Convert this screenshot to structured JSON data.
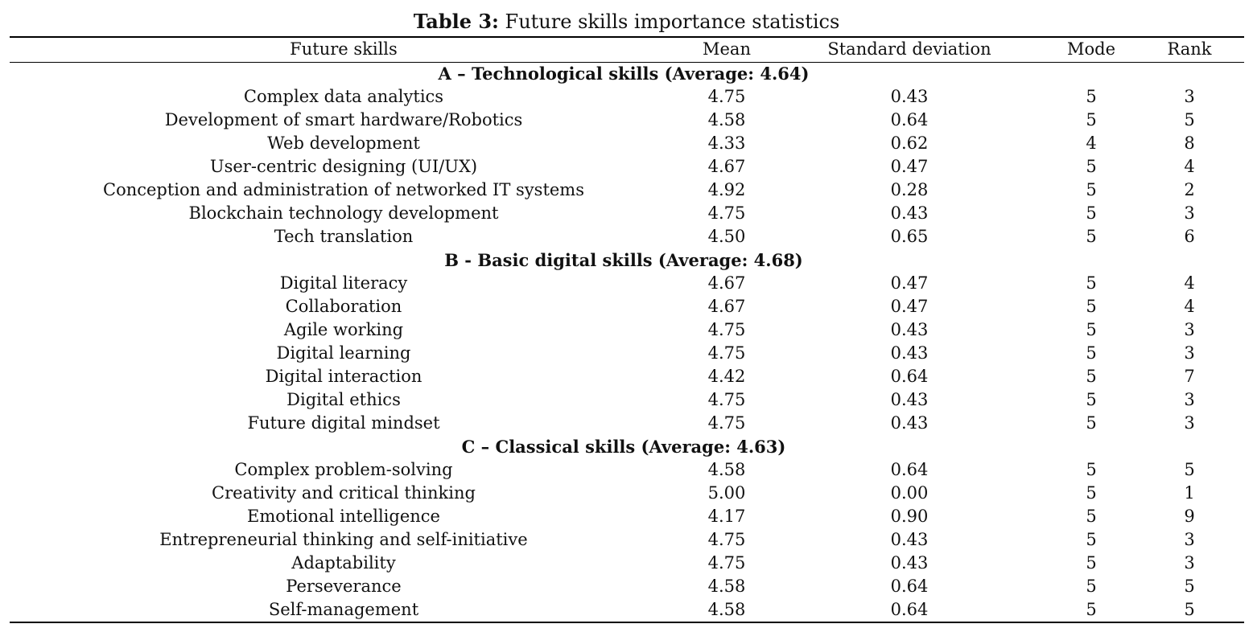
{
  "caption": {
    "label": "Table 3:",
    "text": "Future skills importance statistics"
  },
  "header": {
    "skill": "Future skills",
    "mean": "Mean",
    "sd": "Standard deviation",
    "mode": "Mode",
    "rank": "Rank"
  },
  "sections": [
    {
      "title": "A – Technological skills (Average: 4.64)",
      "rows": [
        {
          "skill": "Complex data analytics",
          "mean": "4.75",
          "sd": "0.43",
          "mode": "5",
          "rank": "3"
        },
        {
          "skill": "Development of smart hardware/Robotics",
          "mean": "4.58",
          "sd": "0.64",
          "mode": "5",
          "rank": "5"
        },
        {
          "skill": "Web development",
          "mean": "4.33",
          "sd": "0.62",
          "mode": "4",
          "rank": "8"
        },
        {
          "skill": "User-centric designing (UI/UX)",
          "mean": "4.67",
          "sd": "0.47",
          "mode": "5",
          "rank": "4"
        },
        {
          "skill": "Conception and administration of networked IT systems",
          "mean": "4.92",
          "sd": "0.28",
          "mode": "5",
          "rank": "2"
        },
        {
          "skill": "Blockchain technology development",
          "mean": "4.75",
          "sd": "0.43",
          "mode": "5",
          "rank": "3"
        },
        {
          "skill": "Tech translation",
          "mean": "4.50",
          "sd": "0.65",
          "mode": "5",
          "rank": "6"
        }
      ]
    },
    {
      "title": "B - Basic digital skills (Average: 4.68)",
      "rows": [
        {
          "skill": "Digital literacy",
          "mean": "4.67",
          "sd": "0.47",
          "mode": "5",
          "rank": "4"
        },
        {
          "skill": "Collaboration",
          "mean": "4.67",
          "sd": "0.47",
          "mode": "5",
          "rank": "4"
        },
        {
          "skill": "Agile working",
          "mean": "4.75",
          "sd": "0.43",
          "mode": "5",
          "rank": "3"
        },
        {
          "skill": "Digital learning",
          "mean": "4.75",
          "sd": "0.43",
          "mode": "5",
          "rank": "3"
        },
        {
          "skill": "Digital interaction",
          "mean": "4.42",
          "sd": "0.64",
          "mode": "5",
          "rank": "7"
        },
        {
          "skill": "Digital ethics",
          "mean": "4.75",
          "sd": "0.43",
          "mode": "5",
          "rank": "3"
        },
        {
          "skill": "Future digital mindset",
          "mean": "4.75",
          "sd": "0.43",
          "mode": "5",
          "rank": "3"
        }
      ]
    },
    {
      "title": "C – Classical skills (Average: 4.63)",
      "rows": [
        {
          "skill": "Complex problem-solving",
          "mean": "4.58",
          "sd": "0.64",
          "mode": "5",
          "rank": "5"
        },
        {
          "skill": "Creativity and critical thinking",
          "mean": "5.00",
          "sd": "0.00",
          "mode": "5",
          "rank": "1"
        },
        {
          "skill": "Emotional intelligence",
          "mean": "4.17",
          "sd": "0.90",
          "mode": "5",
          "rank": "9"
        },
        {
          "skill": "Entrepreneurial thinking and self-initiative",
          "mean": "4.75",
          "sd": "0.43",
          "mode": "5",
          "rank": "3"
        },
        {
          "skill": "Adaptability",
          "mean": "4.75",
          "sd": "0.43",
          "mode": "5",
          "rank": "3"
        },
        {
          "skill": "Perseverance",
          "mean": "4.58",
          "sd": "0.64",
          "mode": "5",
          "rank": "5"
        },
        {
          "skill": "Self-management",
          "mean": "4.58",
          "sd": "0.64",
          "mode": "5",
          "rank": "5"
        }
      ]
    }
  ]
}
